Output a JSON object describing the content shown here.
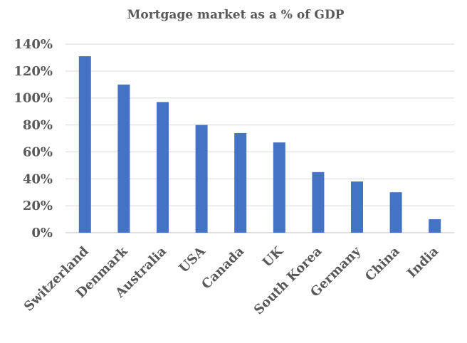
{
  "chart_data": {
    "type": "bar",
    "title": "Mortgage market as a % of GDP",
    "xlabel": "",
    "ylabel": "",
    "categories": [
      "Switzerland",
      "Denmark",
      "Australia",
      "USA",
      "Canada",
      "UK",
      "South Korea",
      "Germany",
      "China",
      "India"
    ],
    "values": [
      131,
      110,
      97,
      80,
      74,
      67,
      45,
      38,
      30,
      10
    ],
    "ylim": [
      0,
      140
    ],
    "yticks": [
      "0%",
      "20%",
      "40%",
      "60%",
      "80%",
      "100%",
      "120%",
      "140%"
    ],
    "grid": true,
    "legend": "none",
    "bar_color": "#4472C4"
  }
}
